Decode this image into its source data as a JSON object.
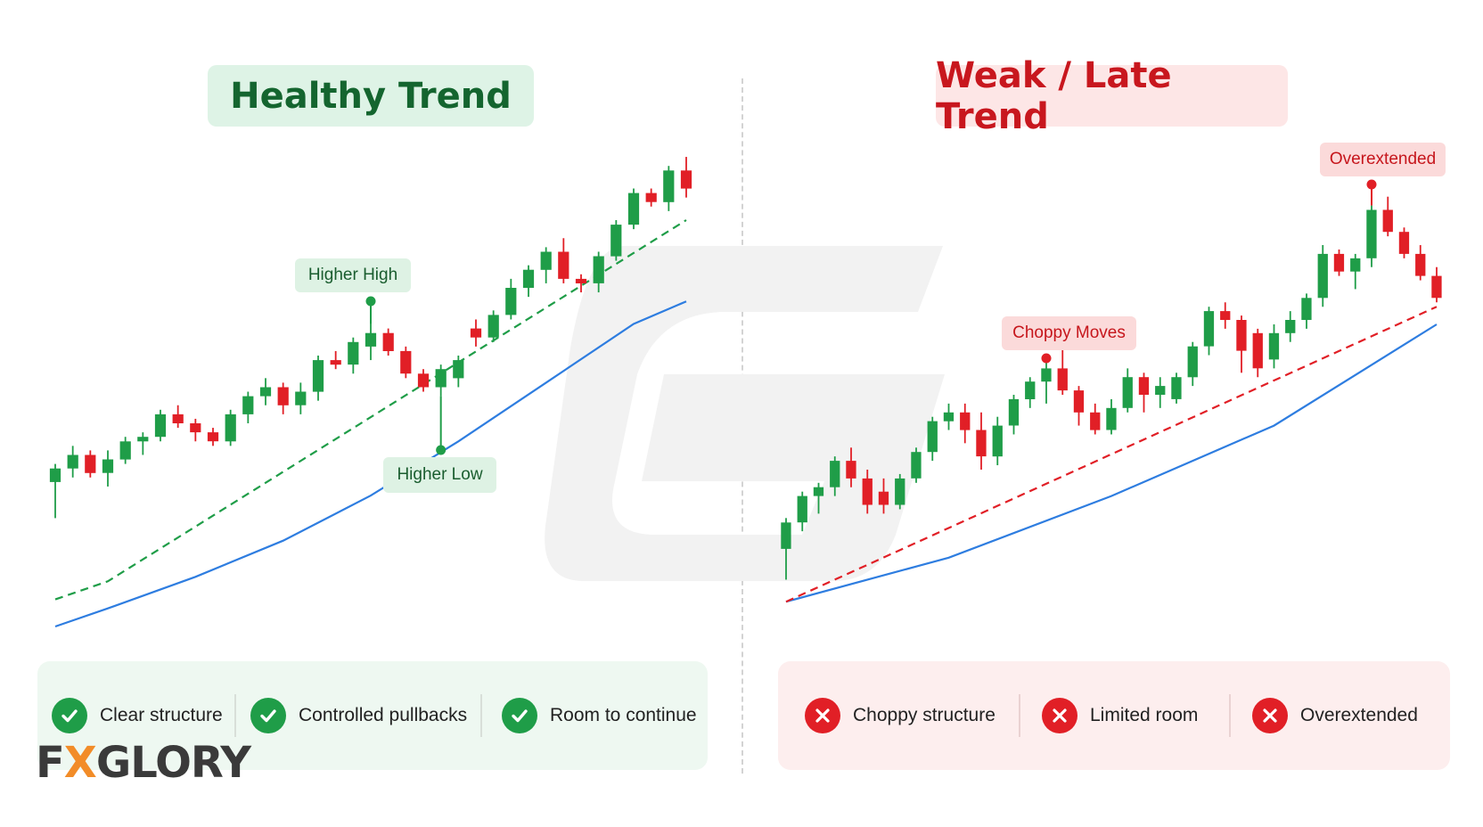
{
  "left_panel": {
    "title": "Healthy Trend",
    "annotations": {
      "higher_high": "Higher High",
      "higher_low": "Higher Low"
    },
    "footer": [
      {
        "label": "Clear structure",
        "icon": "check-icon"
      },
      {
        "label": "Controlled pullbacks",
        "icon": "check-icon"
      },
      {
        "label": "Room to continue",
        "icon": "check-icon"
      }
    ]
  },
  "right_panel": {
    "title": "Weak / Late Trend",
    "annotations": {
      "choppy_moves": "Choppy Moves",
      "overextended": "Overextended"
    },
    "footer": [
      {
        "label": "Choppy structure",
        "icon": "x-icon"
      },
      {
        "label": "Limited room",
        "icon": "x-icon"
      },
      {
        "label": "Overextended",
        "icon": "x-icon"
      }
    ]
  },
  "logo": {
    "text": "FXGLORY",
    "accent": "#f28c28"
  },
  "colors": {
    "bull": "#1f9d48",
    "bear": "#e11f26",
    "ma_line": "#2e7de0",
    "green_trend": "#1f9d48",
    "red_trend": "#e11f26",
    "watermark": "#f2f2f2"
  },
  "chart_data": [
    {
      "type": "candlestick",
      "title": "Healthy Trend",
      "candles": [
        {
          "o": 52,
          "h": 56,
          "l": 44,
          "c": 55
        },
        {
          "o": 55,
          "h": 60,
          "l": 53,
          "c": 58
        },
        {
          "o": 58,
          "h": 59,
          "l": 53,
          "c": 54
        },
        {
          "o": 54,
          "h": 59,
          "l": 51,
          "c": 57
        },
        {
          "o": 57,
          "h": 62,
          "l": 56,
          "c": 61
        },
        {
          "o": 61,
          "h": 63,
          "l": 58,
          "c": 62
        },
        {
          "o": 62,
          "h": 68,
          "l": 61,
          "c": 67
        },
        {
          "o": 67,
          "h": 69,
          "l": 64,
          "c": 65
        },
        {
          "o": 65,
          "h": 66,
          "l": 61,
          "c": 63
        },
        {
          "o": 63,
          "h": 64,
          "l": 60,
          "c": 61
        },
        {
          "o": 61,
          "h": 68,
          "l": 60,
          "c": 67
        },
        {
          "o": 67,
          "h": 72,
          "l": 65,
          "c": 71
        },
        {
          "o": 71,
          "h": 75,
          "l": 69,
          "c": 73
        },
        {
          "o": 73,
          "h": 74,
          "l": 67,
          "c": 69
        },
        {
          "o": 69,
          "h": 74,
          "l": 67,
          "c": 72
        },
        {
          "o": 72,
          "h": 80,
          "l": 70,
          "c": 79
        },
        {
          "o": 79,
          "h": 81,
          "l": 77,
          "c": 78
        },
        {
          "o": 78,
          "h": 84,
          "l": 76,
          "c": 83
        },
        {
          "o": 82,
          "h": 87,
          "l": 79,
          "c": 85
        },
        {
          "o": 85,
          "h": 86,
          "l": 80,
          "c": 81
        },
        {
          "o": 81,
          "h": 82,
          "l": 75,
          "c": 76
        },
        {
          "o": 76,
          "h": 77,
          "l": 72,
          "c": 73
        },
        {
          "o": 73,
          "h": 78,
          "l": 71,
          "c": 77
        },
        {
          "o": 75,
          "h": 80,
          "l": 73,
          "c": 79
        },
        {
          "o": 86,
          "h": 88,
          "l": 82,
          "c": 84
        },
        {
          "o": 84,
          "h": 90,
          "l": 83,
          "c": 89
        },
        {
          "o": 89,
          "h": 97,
          "l": 88,
          "c": 95
        },
        {
          "o": 95,
          "h": 100,
          "l": 93,
          "c": 99
        },
        {
          "o": 99,
          "h": 104,
          "l": 96,
          "c": 103
        },
        {
          "o": 103,
          "h": 106,
          "l": 96,
          "c": 97
        },
        {
          "o": 97,
          "h": 98,
          "l": 94,
          "c": 96
        },
        {
          "o": 96,
          "h": 103,
          "l": 94,
          "c": 102
        },
        {
          "o": 102,
          "h": 110,
          "l": 101,
          "c": 109
        },
        {
          "o": 109,
          "h": 117,
          "l": 108,
          "c": 116
        },
        {
          "o": 116,
          "h": 117,
          "l": 113,
          "c": 114
        },
        {
          "o": 114,
          "h": 122,
          "l": 112,
          "c": 121
        },
        {
          "o": 121,
          "h": 124,
          "l": 115,
          "c": 117
        }
      ],
      "ma_line": [
        [
          0,
          20
        ],
        [
          3,
          24
        ],
        [
          8,
          31
        ],
        [
          13,
          39
        ],
        [
          18,
          49
        ],
        [
          23,
          61
        ],
        [
          28,
          74
        ],
        [
          33,
          87
        ],
        [
          36,
          92
        ]
      ],
      "trendline": [
        [
          0,
          26
        ],
        [
          3,
          30
        ],
        [
          36,
          110
        ]
      ],
      "ylim": [
        20,
        125
      ]
    },
    {
      "type": "candlestick",
      "title": "Weak / Late Trend",
      "candles": [
        {
          "o": 25,
          "h": 32,
          "l": 18,
          "c": 31
        },
        {
          "o": 31,
          "h": 38,
          "l": 29,
          "c": 37
        },
        {
          "o": 37,
          "h": 40,
          "l": 33,
          "c": 39
        },
        {
          "o": 39,
          "h": 46,
          "l": 37,
          "c": 45
        },
        {
          "o": 45,
          "h": 48,
          "l": 39,
          "c": 41
        },
        {
          "o": 41,
          "h": 43,
          "l": 33,
          "c": 35
        },
        {
          "o": 38,
          "h": 41,
          "l": 33,
          "c": 35
        },
        {
          "o": 35,
          "h": 42,
          "l": 34,
          "c": 41
        },
        {
          "o": 41,
          "h": 48,
          "l": 40,
          "c": 47
        },
        {
          "o": 47,
          "h": 55,
          "l": 45,
          "c": 54
        },
        {
          "o": 54,
          "h": 58,
          "l": 52,
          "c": 56
        },
        {
          "o": 56,
          "h": 58,
          "l": 49,
          "c": 52
        },
        {
          "o": 52,
          "h": 56,
          "l": 43,
          "c": 46
        },
        {
          "o": 46,
          "h": 55,
          "l": 44,
          "c": 53
        },
        {
          "o": 53,
          "h": 60,
          "l": 51,
          "c": 59
        },
        {
          "o": 59,
          "h": 64,
          "l": 57,
          "c": 63
        },
        {
          "o": 63,
          "h": 68,
          "l": 58,
          "c": 66
        },
        {
          "o": 66,
          "h": 72,
          "l": 60,
          "c": 61
        },
        {
          "o": 61,
          "h": 62,
          "l": 53,
          "c": 56
        },
        {
          "o": 56,
          "h": 58,
          "l": 51,
          "c": 52
        },
        {
          "o": 52,
          "h": 59,
          "l": 51,
          "c": 57
        },
        {
          "o": 57,
          "h": 66,
          "l": 56,
          "c": 64
        },
        {
          "o": 64,
          "h": 65,
          "l": 56,
          "c": 60
        },
        {
          "o": 60,
          "h": 64,
          "l": 57,
          "c": 62
        },
        {
          "o": 59,
          "h": 65,
          "l": 58,
          "c": 64
        },
        {
          "o": 64,
          "h": 72,
          "l": 62,
          "c": 71
        },
        {
          "o": 71,
          "h": 80,
          "l": 69,
          "c": 79
        },
        {
          "o": 79,
          "h": 81,
          "l": 75,
          "c": 77
        },
        {
          "o": 77,
          "h": 78,
          "l": 65,
          "c": 70
        },
        {
          "o": 74,
          "h": 75,
          "l": 64,
          "c": 66
        },
        {
          "o": 68,
          "h": 76,
          "l": 66,
          "c": 74
        },
        {
          "o": 74,
          "h": 79,
          "l": 72,
          "c": 77
        },
        {
          "o": 77,
          "h": 83,
          "l": 75,
          "c": 82
        },
        {
          "o": 82,
          "h": 94,
          "l": 80,
          "c": 92
        },
        {
          "o": 92,
          "h": 93,
          "l": 87,
          "c": 88
        },
        {
          "o": 88,
          "h": 92,
          "l": 84,
          "c": 91
        },
        {
          "o": 91,
          "h": 103,
          "l": 89,
          "c": 102
        },
        {
          "o": 102,
          "h": 105,
          "l": 96,
          "c": 97
        },
        {
          "o": 97,
          "h": 98,
          "l": 91,
          "c": 92
        },
        {
          "o": 92,
          "h": 94,
          "l": 86,
          "c": 87
        },
        {
          "o": 87,
          "h": 89,
          "l": 81,
          "c": 82
        }
      ],
      "ma_line": [
        [
          0,
          13
        ],
        [
          10,
          23
        ],
        [
          20,
          37
        ],
        [
          30,
          53
        ],
        [
          40,
          76
        ]
      ],
      "trendline": [
        [
          0,
          13
        ],
        [
          40,
          80
        ]
      ],
      "ylim": [
        10,
        110
      ]
    }
  ]
}
